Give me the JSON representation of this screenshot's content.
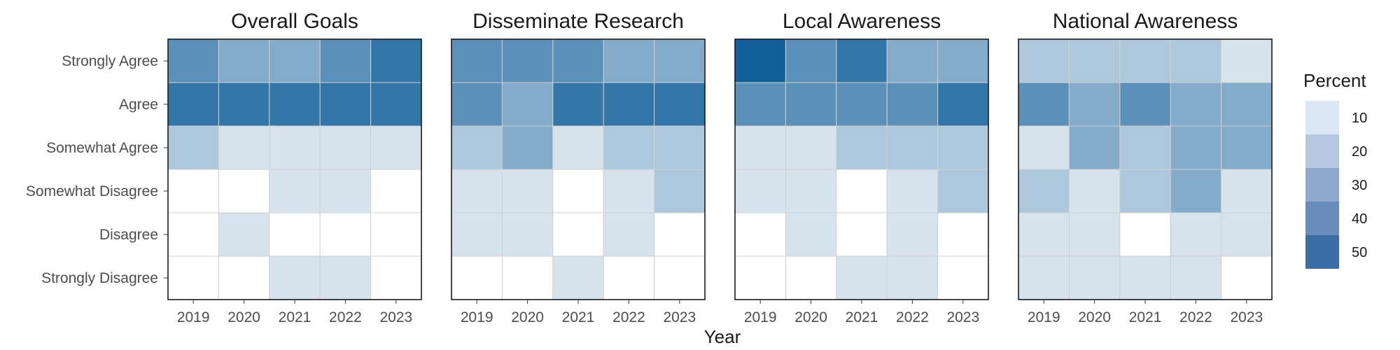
{
  "chart_data": {
    "type": "heatmap",
    "xlabel": "Year",
    "years": [
      "2019",
      "2020",
      "2021",
      "2022",
      "2023"
    ],
    "rows": [
      "Strongly Agree",
      "Agree",
      "Somewhat Agree",
      "Somewhat Disagree",
      "Disagree",
      "Strongly Disagree"
    ],
    "legend": {
      "title": "Percent",
      "placement": "right",
      "breaks": [
        10,
        20,
        30,
        40,
        50
      ],
      "colors": [
        "#dbe7f4",
        "#b7c9e2",
        "#8faace",
        "#6a8cbb",
        "#3a6ea5"
      ]
    },
    "color_scale": {
      "low": "#ffffff",
      "high": "#115f99",
      "min": 0,
      "max": 58,
      "zero_color": "#ffffff"
    },
    "grid_color": "#d0d0d0",
    "panels": [
      {
        "title": "Overall Goals",
        "values": [
          [
            40,
            30,
            30,
            40,
            50
          ],
          [
            50,
            50,
            50,
            50,
            50
          ],
          [
            20,
            10,
            10,
            10,
            10
          ],
          [
            0,
            0,
            10,
            10,
            0
          ],
          [
            0,
            10,
            0,
            0,
            0
          ],
          [
            0,
            0,
            10,
            10,
            0
          ]
        ]
      },
      {
        "title": "Disseminate Research",
        "values": [
          [
            40,
            40,
            40,
            30,
            30
          ],
          [
            40,
            30,
            50,
            50,
            50
          ],
          [
            20,
            30,
            10,
            20,
            20
          ],
          [
            10,
            10,
            0,
            10,
            20
          ],
          [
            10,
            10,
            0,
            10,
            0
          ],
          [
            0,
            0,
            10,
            0,
            0
          ]
        ]
      },
      {
        "title": "Local Awareness",
        "values": [
          [
            58,
            40,
            50,
            30,
            30
          ],
          [
            40,
            40,
            40,
            40,
            50
          ],
          [
            10,
            10,
            20,
            20,
            20
          ],
          [
            10,
            10,
            0,
            10,
            20
          ],
          [
            0,
            10,
            0,
            10,
            0
          ],
          [
            0,
            0,
            10,
            10,
            0
          ]
        ]
      },
      {
        "title": "National Awareness",
        "values": [
          [
            20,
            20,
            20,
            20,
            10
          ],
          [
            40,
            30,
            40,
            30,
            30
          ],
          [
            10,
            30,
            20,
            30,
            30
          ],
          [
            20,
            10,
            20,
            30,
            10
          ],
          [
            10,
            10,
            0,
            10,
            10
          ],
          [
            10,
            10,
            10,
            10,
            0
          ]
        ]
      }
    ]
  }
}
